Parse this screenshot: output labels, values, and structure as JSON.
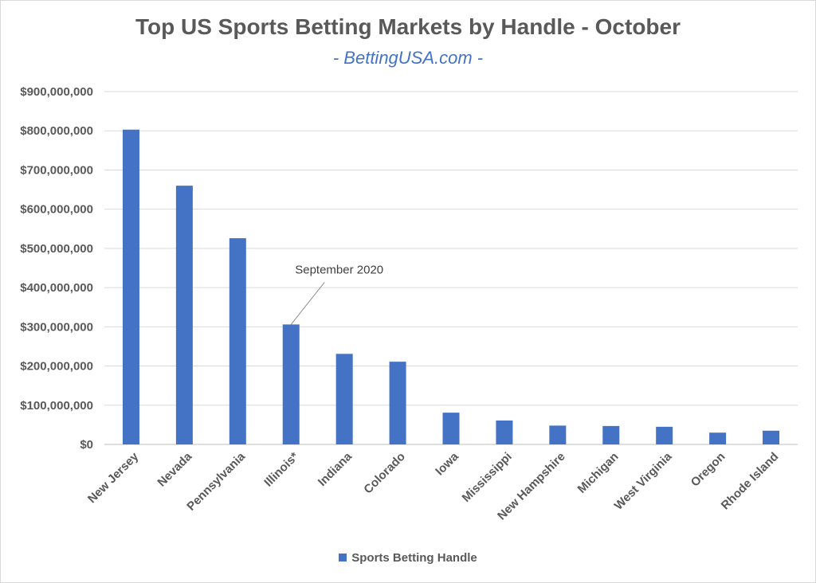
{
  "chart_data": {
    "type": "bar",
    "title": "Top US Sports Betting Markets by Handle - October",
    "subtitle": "- BettingUSA.com -",
    "categories": [
      "New Jersey",
      "Nevada",
      "Pennsylvania",
      "Illinois*",
      "Indiana",
      "Colorado",
      "Iowa",
      "Mississippi",
      "New Hampshire",
      "Michigan",
      "West Virginia",
      "Oregon",
      "Rhode Island"
    ],
    "series": [
      {
        "name": "Sports Betting Handle",
        "color": "#4472c4",
        "values": [
          803000000,
          660000000,
          526000000,
          306000000,
          231000000,
          211000000,
          81000000,
          61000000,
          48000000,
          47000000,
          45000000,
          30000000,
          35000000
        ]
      }
    ],
    "y_ticks": [
      "$0",
      "$100,000,000",
      "$200,000,000",
      "$300,000,000",
      "$400,000,000",
      "$500,000,000",
      "$600,000,000",
      "$700,000,000",
      "$800,000,000",
      "$900,000,000"
    ],
    "ylim": [
      0,
      900000000
    ],
    "grid": true,
    "legend": "bottom",
    "annotation": {
      "text": "September 2020",
      "category": "Illinois*"
    }
  }
}
